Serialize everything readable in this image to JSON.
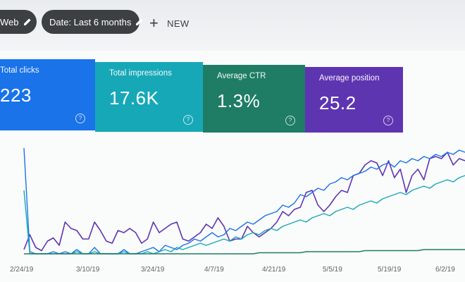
{
  "toolbar": {
    "filters": [
      {
        "label": "Web",
        "icon": "pencil-icon"
      },
      {
        "label": "Date: Last 6 months",
        "icon": "pencil-icon"
      }
    ],
    "new_label": "NEW"
  },
  "metrics": [
    {
      "label": "Total clicks",
      "value": "223",
      "color": "#1a73e8",
      "icon": "help-icon"
    },
    {
      "label": "Total impressions",
      "value": "17.6K",
      "color": "#17a8b8",
      "icon": "help-icon"
    },
    {
      "label": "Average CTR",
      "value": "1.3%",
      "color": "#1e7d64",
      "icon": "help-icon"
    },
    {
      "label": "Average position",
      "value": "25.2",
      "color": "#5e35b1",
      "icon": "help-icon"
    }
  ],
  "chart_data": {
    "type": "line",
    "x_ticks": [
      "2/24/19",
      "3/10/19",
      "3/24/19",
      "4/7/19",
      "4/21/19",
      "5/5/19",
      "5/19/19",
      "6/2/19"
    ],
    "series": [
      {
        "color": "#5e35b1",
        "values": [
          4,
          18,
          6,
          3,
          12,
          15,
          8,
          30,
          24,
          22,
          14,
          14,
          30,
          22,
          12,
          10,
          22,
          20,
          24,
          20,
          10,
          14,
          30,
          20,
          24,
          28,
          30,
          14,
          12,
          16,
          20,
          28,
          24,
          34,
          26,
          12,
          14,
          14,
          26,
          20,
          16,
          20,
          24,
          30,
          40,
          36,
          42,
          44,
          58,
          60,
          46,
          40,
          46,
          54,
          60,
          58,
          74,
          76,
          84,
          88,
          86,
          74,
          88,
          72,
          80,
          58,
          74,
          80,
          70,
          90,
          92,
          90,
          96,
          84,
          90,
          88
        ]
      },
      {
        "color": "#1a73e8",
        "values": [
          100,
          2,
          0,
          0,
          0,
          2,
          0,
          2,
          0,
          4,
          0,
          0,
          6,
          0,
          0,
          0,
          0,
          4,
          0,
          0,
          2,
          4,
          6,
          2,
          8,
          6,
          4,
          8,
          10,
          14,
          12,
          16,
          20,
          16,
          18,
          24,
          22,
          26,
          30,
          28,
          32,
          36,
          38,
          40,
          46,
          44,
          48,
          56,
          54,
          58,
          62,
          60,
          66,
          68,
          72,
          70,
          74,
          76,
          78,
          82,
          80,
          84,
          86,
          82,
          88,
          86,
          90,
          88,
          92,
          90,
          94,
          92,
          96,
          94,
          98,
          96
        ]
      },
      {
        "color": "#17a8b8",
        "values": [
          60,
          0,
          0,
          0,
          0,
          0,
          0,
          0,
          0,
          2,
          0,
          0,
          2,
          0,
          0,
          0,
          0,
          2,
          0,
          0,
          0,
          2,
          0,
          2,
          4,
          2,
          6,
          4,
          6,
          8,
          10,
          8,
          10,
          12,
          14,
          12,
          16,
          14,
          18,
          20,
          18,
          22,
          24,
          22,
          26,
          28,
          30,
          32,
          30,
          34,
          36,
          38,
          36,
          40,
          42,
          44,
          42,
          46,
          48,
          50,
          48,
          52,
          54,
          56,
          58,
          56,
          60,
          62,
          64,
          62,
          66,
          68,
          70,
          68,
          72,
          74
        ]
      },
      {
        "color": "#1e7d64",
        "values": [
          0,
          0,
          0,
          0,
          0,
          0,
          0,
          0,
          0,
          0,
          0,
          0,
          0,
          0,
          0,
          0,
          0,
          0,
          0,
          0,
          0,
          0,
          0,
          0,
          0,
          0,
          0,
          0,
          0,
          0,
          0,
          0,
          0,
          0,
          0,
          0,
          0,
          0,
          0,
          0,
          1,
          1,
          1,
          1,
          1,
          1,
          1,
          1,
          2,
          2,
          2,
          2,
          2,
          2,
          2,
          2,
          2,
          2,
          3,
          3,
          3,
          3,
          3,
          3,
          3,
          3,
          3,
          3,
          4,
          4,
          4,
          4,
          4,
          4,
          4,
          4
        ]
      }
    ],
    "grid": false,
    "legend": "none"
  }
}
